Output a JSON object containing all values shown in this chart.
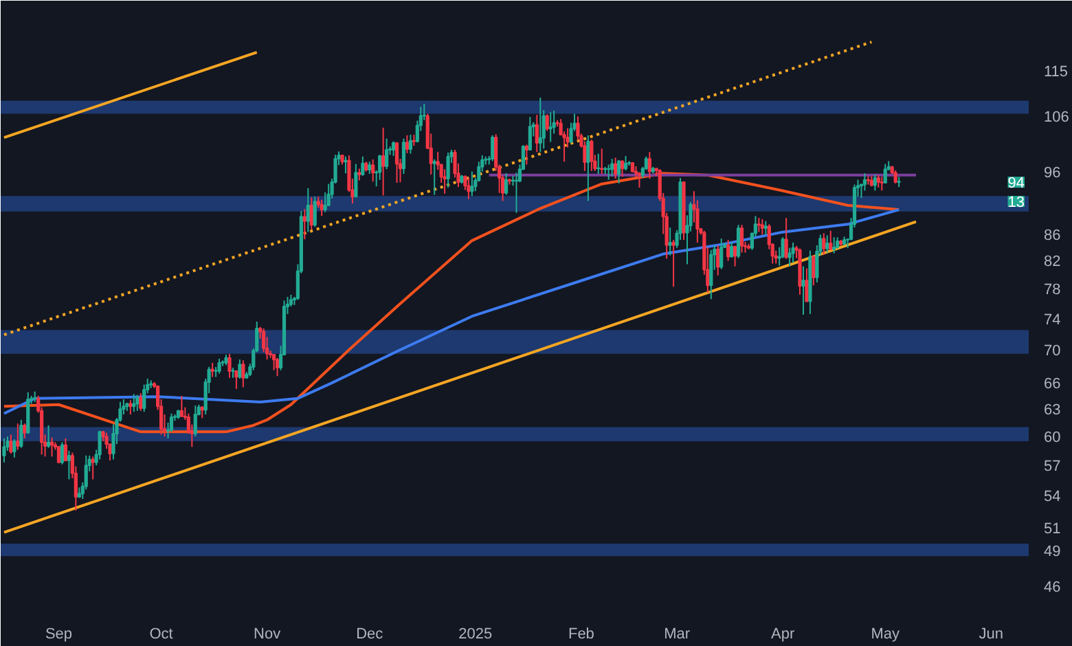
{
  "chart_data": {
    "type": "candlestick",
    "log": "y",
    "grid": false,
    "xlim": [
      "2024-08-15",
      "2025-06-12"
    ],
    "xticks": [
      {
        "value": "2024-09-01",
        "label": "Sep"
      },
      {
        "value": "2024-10-01",
        "label": "Oct"
      },
      {
        "value": "2024-11-01",
        "label": "Nov"
      },
      {
        "value": "2024-12-01",
        "label": "Dec"
      },
      {
        "value": "2025-01-01",
        "label": "2025"
      },
      {
        "value": "2025-02-01",
        "label": "Feb"
      },
      {
        "value": "2025-03-01",
        "label": "Mar"
      },
      {
        "value": "2025-04-01",
        "label": "Apr"
      },
      {
        "value": "2025-05-01",
        "label": "May"
      },
      {
        "value": "2025-06-01",
        "label": "Jun"
      }
    ],
    "ylim": [
      44,
      124
    ],
    "yticks": [
      46,
      49,
      51,
      54,
      57,
      60,
      63,
      66,
      70,
      74,
      78,
      82,
      86,
      96,
      106,
      115
    ],
    "x": [
      "2024-08-16",
      "2024-08-17",
      "2024-08-18",
      "2024-08-19",
      "2024-08-20",
      "2024-08-21",
      "2024-08-22",
      "2024-08-23",
      "2024-08-24",
      "2024-08-25",
      "2024-08-26",
      "2024-08-27",
      "2024-08-28",
      "2024-08-29",
      "2024-08-30",
      "2024-08-31",
      "2024-09-01",
      "2024-09-02",
      "2024-09-03",
      "2024-09-04",
      "2024-09-05",
      "2024-09-06",
      "2024-09-07",
      "2024-09-08",
      "2024-09-09",
      "2024-09-10",
      "2024-09-11",
      "2024-09-12",
      "2024-09-13",
      "2024-09-14",
      "2024-09-15",
      "2024-09-16",
      "2024-09-17",
      "2024-09-18",
      "2024-09-19",
      "2024-09-20",
      "2024-09-21",
      "2024-09-22",
      "2024-09-23",
      "2024-09-24",
      "2024-09-25",
      "2024-09-26",
      "2024-09-27",
      "2024-09-28",
      "2024-09-29",
      "2024-09-30",
      "2024-10-01",
      "2024-10-02",
      "2024-10-03",
      "2024-10-04",
      "2024-10-05",
      "2024-10-06",
      "2024-10-07",
      "2024-10-08",
      "2024-10-09",
      "2024-10-10",
      "2024-10-11",
      "2024-10-12",
      "2024-10-13",
      "2024-10-14",
      "2024-10-15",
      "2024-10-16",
      "2024-10-17",
      "2024-10-18",
      "2024-10-19",
      "2024-10-20",
      "2024-10-21",
      "2024-10-22",
      "2024-10-23",
      "2024-10-24",
      "2024-10-25",
      "2024-10-26",
      "2024-10-27",
      "2024-10-28",
      "2024-10-29",
      "2024-10-30",
      "2024-10-31",
      "2024-11-01",
      "2024-11-02",
      "2024-11-03",
      "2024-11-04",
      "2024-11-05",
      "2024-11-06",
      "2024-11-07",
      "2024-11-08",
      "2024-11-09",
      "2024-11-10",
      "2024-11-11",
      "2024-11-12",
      "2024-11-13",
      "2024-11-14",
      "2024-11-15",
      "2024-11-16",
      "2024-11-17",
      "2024-11-18",
      "2024-11-19",
      "2024-11-20",
      "2024-11-21",
      "2024-11-22",
      "2024-11-23",
      "2024-11-24",
      "2024-11-25",
      "2024-11-26",
      "2024-11-27",
      "2024-11-28",
      "2024-11-29",
      "2024-11-30",
      "2024-12-01",
      "2024-12-02",
      "2024-12-03",
      "2024-12-04",
      "2024-12-05",
      "2024-12-06",
      "2024-12-07",
      "2024-12-08",
      "2024-12-09",
      "2024-12-10",
      "2024-12-11",
      "2024-12-12",
      "2024-12-13",
      "2024-12-14",
      "2024-12-15",
      "2024-12-16",
      "2024-12-17",
      "2024-12-18",
      "2024-12-19",
      "2024-12-20",
      "2024-12-21",
      "2024-12-22",
      "2024-12-23",
      "2024-12-24",
      "2024-12-25",
      "2024-12-26",
      "2024-12-27",
      "2024-12-28",
      "2024-12-29",
      "2024-12-30",
      "2024-12-31",
      "2025-01-01",
      "2025-01-02",
      "2025-01-03",
      "2025-01-04",
      "2025-01-05",
      "2025-01-06",
      "2025-01-07",
      "2025-01-08",
      "2025-01-09",
      "2025-01-10",
      "2025-01-11",
      "2025-01-12",
      "2025-01-13",
      "2025-01-14",
      "2025-01-15",
      "2025-01-16",
      "2025-01-17",
      "2025-01-18",
      "2025-01-19",
      "2025-01-20",
      "2025-01-21",
      "2025-01-22",
      "2025-01-23",
      "2025-01-24",
      "2025-01-25",
      "2025-01-26",
      "2025-01-27",
      "2025-01-28",
      "2025-01-29",
      "2025-01-30",
      "2025-01-31",
      "2025-02-01",
      "2025-02-02",
      "2025-02-03",
      "2025-02-04",
      "2025-02-05",
      "2025-02-06",
      "2025-02-07",
      "2025-02-08",
      "2025-02-09",
      "2025-02-10",
      "2025-02-11",
      "2025-02-12",
      "2025-02-13",
      "2025-02-14",
      "2025-02-15",
      "2025-02-16",
      "2025-02-17",
      "2025-02-18",
      "2025-02-19",
      "2025-02-20",
      "2025-02-21",
      "2025-02-22",
      "2025-02-23",
      "2025-02-24",
      "2025-02-25",
      "2025-02-26",
      "2025-02-27",
      "2025-02-28",
      "2025-03-01",
      "2025-03-02",
      "2025-03-03",
      "2025-03-04",
      "2025-03-05",
      "2025-03-06",
      "2025-03-07",
      "2025-03-08",
      "2025-03-09",
      "2025-03-10",
      "2025-03-11",
      "2025-03-12",
      "2025-03-13",
      "2025-03-14",
      "2025-03-15",
      "2025-03-16",
      "2025-03-17",
      "2025-03-18",
      "2025-03-19",
      "2025-03-20",
      "2025-03-21",
      "2025-03-22",
      "2025-03-23",
      "2025-03-24",
      "2025-03-25",
      "2025-03-26",
      "2025-03-27",
      "2025-03-28",
      "2025-03-29",
      "2025-03-30",
      "2025-03-31",
      "2025-04-01",
      "2025-04-02",
      "2025-04-03",
      "2025-04-04",
      "2025-04-05",
      "2025-04-06",
      "2025-04-07",
      "2025-04-08",
      "2025-04-09",
      "2025-04-10",
      "2025-04-11",
      "2025-04-12",
      "2025-04-13",
      "2025-04-14",
      "2025-04-15",
      "2025-04-16",
      "2025-04-17",
      "2025-04-18",
      "2025-04-19",
      "2025-04-20",
      "2025-04-21",
      "2025-04-22",
      "2025-04-23",
      "2025-04-24",
      "2025-04-25",
      "2025-04-26",
      "2025-04-27",
      "2025-04-28",
      "2025-04-29",
      "2025-04-30",
      "2025-05-01",
      "2025-05-02",
      "2025-05-03",
      "2025-05-04",
      "2025-05-05"
    ],
    "ohlc": [
      [
        58.0,
        59.8,
        57.3,
        58.9
      ],
      [
        58.9,
        60.0,
        58.5,
        59.5
      ],
      [
        59.5,
        60.2,
        58.2,
        58.4
      ],
      [
        58.4,
        59.7,
        57.8,
        59.5
      ],
      [
        59.5,
        61.4,
        58.6,
        59.0
      ],
      [
        59.0,
        61.8,
        58.8,
        61.2
      ],
      [
        61.2,
        61.4,
        59.8,
        60.4
      ],
      [
        60.4,
        64.9,
        60.3,
        64.1
      ],
      [
        64.1,
        64.5,
        63.6,
        64.2
      ],
      [
        64.2,
        65.0,
        63.8,
        64.2
      ],
      [
        64.2,
        64.5,
        62.6,
        62.8
      ],
      [
        62.8,
        63.2,
        58.1,
        59.4
      ],
      [
        59.4,
        60.2,
        57.9,
        59.0
      ],
      [
        59.0,
        61.2,
        58.8,
        59.4
      ],
      [
        59.4,
        59.9,
        57.9,
        59.1
      ],
      [
        59.1,
        59.4,
        58.6,
        58.9
      ],
      [
        58.9,
        59.0,
        57.2,
        57.3
      ],
      [
        57.3,
        59.4,
        57.1,
        59.1
      ],
      [
        59.1,
        59.8,
        57.4,
        57.5
      ],
      [
        57.5,
        58.5,
        55.6,
        58.0
      ],
      [
        58.0,
        58.3,
        55.7,
        56.2
      ],
      [
        56.2,
        56.9,
        52.6,
        53.9
      ],
      [
        53.9,
        54.8,
        53.8,
        54.2
      ],
      [
        54.2,
        55.3,
        53.7,
        54.9
      ],
      [
        54.9,
        58.0,
        54.6,
        57.0
      ],
      [
        57.0,
        58.0,
        56.4,
        57.6
      ],
      [
        57.6,
        57.9,
        55.6,
        57.3
      ],
      [
        57.3,
        58.6,
        57.0,
        58.1
      ],
      [
        58.1,
        60.6,
        57.6,
        60.5
      ],
      [
        60.5,
        60.6,
        59.5,
        60.0
      ],
      [
        60.0,
        60.4,
        58.7,
        59.2
      ],
      [
        59.2,
        59.2,
        57.5,
        58.2
      ],
      [
        58.2,
        61.3,
        57.6,
        60.3
      ],
      [
        60.3,
        62.0,
        59.2,
        61.8
      ],
      [
        61.8,
        63.8,
        61.6,
        63.0
      ],
      [
        63.0,
        64.1,
        62.4,
        63.3
      ],
      [
        63.3,
        63.7,
        62.8,
        63.6
      ],
      [
        63.6,
        64.0,
        62.4,
        63.3
      ],
      [
        63.3,
        64.7,
        62.7,
        63.6
      ],
      [
        63.6,
        64.6,
        62.8,
        64.3
      ],
      [
        64.3,
        64.8,
        62.8,
        63.1
      ],
      [
        63.1,
        65.8,
        62.7,
        65.2
      ],
      [
        65.2,
        66.5,
        64.8,
        65.8
      ],
      [
        65.8,
        66.3,
        65.4,
        65.9
      ],
      [
        65.9,
        66.1,
        65.4,
        65.6
      ],
      [
        65.6,
        65.7,
        62.9,
        63.3
      ],
      [
        63.3,
        64.1,
        60.2,
        60.8
      ],
      [
        60.8,
        62.4,
        60.0,
        60.6
      ],
      [
        60.6,
        61.5,
        59.8,
        60.7
      ],
      [
        60.7,
        62.5,
        60.5,
        62.1
      ],
      [
        62.1,
        62.4,
        61.7,
        62.1
      ],
      [
        62.1,
        62.9,
        61.9,
        62.8
      ],
      [
        62.8,
        64.5,
        62.1,
        62.2
      ],
      [
        62.2,
        63.2,
        61.8,
        62.1
      ],
      [
        62.1,
        62.5,
        60.3,
        60.6
      ],
      [
        60.6,
        61.3,
        58.9,
        60.3
      ],
      [
        60.3,
        63.4,
        60.0,
        62.4
      ],
      [
        62.4,
        63.5,
        62.3,
        63.2
      ],
      [
        63.2,
        63.3,
        62.0,
        62.9
      ],
      [
        62.9,
        66.5,
        62.4,
        66.1
      ],
      [
        66.1,
        67.9,
        64.8,
        67.6
      ],
      [
        67.6,
        68.4,
        66.7,
        67.4
      ],
      [
        67.4,
        67.9,
        66.7,
        67.4
      ],
      [
        67.4,
        68.9,
        67.1,
        68.4
      ],
      [
        68.4,
        68.7,
        68.0,
        68.4
      ],
      [
        68.4,
        69.4,
        68.1,
        69.0
      ],
      [
        69.0,
        69.5,
        66.6,
        67.4
      ],
      [
        67.4,
        67.8,
        66.6,
        67.4
      ],
      [
        67.4,
        67.5,
        65.3,
        66.7
      ],
      [
        66.7,
        68.8,
        66.5,
        68.2
      ],
      [
        68.2,
        68.7,
        65.5,
        66.6
      ],
      [
        66.6,
        67.3,
        66.5,
        67.0
      ],
      [
        67.0,
        68.3,
        66.8,
        67.9
      ],
      [
        67.9,
        70.2,
        67.5,
        69.9
      ],
      [
        69.9,
        73.6,
        69.7,
        72.7
      ],
      [
        72.7,
        72.9,
        71.4,
        72.3
      ],
      [
        72.3,
        72.7,
        69.7,
        70.2
      ],
      [
        70.2,
        71.6,
        68.8,
        69.5
      ],
      [
        69.5,
        69.9,
        69.0,
        69.4
      ],
      [
        69.4,
        69.4,
        67.5,
        68.8
      ],
      [
        68.8,
        69.0,
        66.8,
        67.8
      ],
      [
        67.8,
        70.5,
        67.5,
        69.4
      ],
      [
        69.4,
        76.4,
        69.3,
        75.6
      ],
      [
        75.6,
        76.9,
        74.6,
        75.9
      ],
      [
        75.9,
        77.2,
        75.6,
        76.5
      ],
      [
        76.5,
        76.9,
        75.8,
        76.7
      ],
      [
        76.7,
        81.5,
        76.5,
        80.5
      ],
      [
        80.5,
        89.6,
        80.2,
        88.7
      ],
      [
        88.7,
        89.9,
        85.2,
        88.0
      ],
      [
        88.0,
        93.3,
        86.3,
        90.5
      ],
      [
        90.5,
        91.8,
        86.7,
        87.4
      ],
      [
        87.4,
        91.9,
        87.1,
        91.1
      ],
      [
        91.1,
        91.9,
        90.1,
        90.6
      ],
      [
        90.6,
        91.4,
        88.8,
        89.8
      ],
      [
        89.8,
        92.6,
        89.4,
        90.5
      ],
      [
        90.5,
        94.0,
        90.4,
        92.3
      ],
      [
        92.3,
        94.9,
        91.6,
        94.3
      ],
      [
        94.3,
        99.0,
        94.1,
        98.3
      ],
      [
        98.3,
        99.6,
        97.2,
        98.9
      ],
      [
        98.9,
        99.0,
        97.3,
        97.8
      ],
      [
        97.8,
        98.7,
        95.8,
        98.0
      ],
      [
        98.0,
        98.9,
        92.7,
        93.0
      ],
      [
        93.0,
        94.9,
        90.8,
        91.9
      ],
      [
        91.9,
        97.4,
        91.8,
        95.9
      ],
      [
        95.9,
        96.6,
        94.6,
        95.6
      ],
      [
        95.6,
        98.7,
        95.4,
        97.5
      ],
      [
        97.5,
        97.8,
        96.1,
        96.4
      ],
      [
        96.4,
        97.8,
        95.7,
        97.2
      ],
      [
        97.2,
        98.2,
        94.4,
        95.9
      ],
      [
        95.9,
        96.3,
        93.6,
        96.0
      ],
      [
        96.0,
        99.0,
        94.7,
        98.8
      ],
      [
        98.8,
        103.9,
        92.1,
        97.0
      ],
      [
        97.0,
        101.9,
        96.5,
        99.9
      ],
      [
        99.9,
        100.5,
        99.0,
        99.9
      ],
      [
        99.9,
        101.4,
        98.8,
        101.1
      ],
      [
        101.1,
        101.2,
        94.2,
        97.4
      ],
      [
        97.4,
        98.3,
        94.3,
        96.6
      ],
      [
        96.6,
        101.9,
        95.7,
        101.2
      ],
      [
        101.2,
        102.5,
        99.3,
        100.0
      ],
      [
        100.0,
        102.6,
        99.2,
        101.5
      ],
      [
        101.5,
        102.6,
        100.6,
        101.4
      ],
      [
        101.4,
        105.2,
        101.2,
        104.3
      ],
      [
        104.3,
        107.8,
        103.3,
        106.1
      ],
      [
        106.1,
        108.4,
        105.3,
        106.1
      ],
      [
        106.1,
        106.5,
        100.0,
        100.2
      ],
      [
        100.2,
        102.8,
        95.6,
        97.5
      ],
      [
        97.5,
        98.2,
        92.2,
        97.8
      ],
      [
        97.8,
        99.5,
        96.4,
        97.3
      ],
      [
        97.3,
        97.4,
        94.2,
        95.2
      ],
      [
        95.2,
        96.5,
        92.4,
        94.9
      ],
      [
        94.9,
        99.4,
        93.4,
        98.7
      ],
      [
        98.7,
        99.9,
        97.6,
        99.4
      ],
      [
        99.4,
        99.9,
        95.1,
        95.8
      ],
      [
        95.8,
        97.5,
        93.5,
        94.3
      ],
      [
        94.3,
        95.5,
        94.1,
        95.3
      ],
      [
        95.3,
        95.3,
        93.0,
        93.7
      ],
      [
        93.7,
        95.0,
        91.5,
        92.8
      ],
      [
        92.8,
        96.1,
        92.0,
        93.6
      ],
      [
        93.6,
        95.0,
        92.8,
        94.6
      ],
      [
        94.6,
        97.8,
        94.4,
        96.9
      ],
      [
        96.9,
        98.9,
        96.1,
        98.1
      ],
      [
        98.1,
        98.7,
        97.3,
        98.2
      ],
      [
        98.2,
        98.8,
        97.3,
        98.3
      ],
      [
        98.3,
        102.5,
        97.9,
        102.1
      ],
      [
        102.1,
        102.7,
        96.2,
        96.9
      ],
      [
        96.9,
        97.3,
        92.5,
        95.0
      ],
      [
        95.0,
        95.4,
        91.2,
        92.5
      ],
      [
        92.5,
        95.8,
        92.2,
        94.7
      ],
      [
        94.7,
        94.9,
        93.9,
        94.5
      ],
      [
        94.5,
        95.4,
        93.7,
        94.5
      ],
      [
        94.5,
        95.9,
        89.3,
        94.5
      ],
      [
        94.5,
        97.3,
        94.3,
        96.5
      ],
      [
        96.5,
        100.7,
        96.4,
        100.5
      ],
      [
        100.5,
        100.8,
        97.3,
        99.9
      ],
      [
        99.9,
        105.9,
        99.9,
        104.1
      ],
      [
        104.1,
        104.9,
        102.3,
        104.4
      ],
      [
        104.4,
        106.3,
        99.5,
        101.1
      ],
      [
        101.1,
        109.6,
        99.5,
        102.0
      ],
      [
        102.0,
        107.2,
        100.1,
        106.1
      ],
      [
        106.1,
        106.4,
        103.3,
        103.7
      ],
      [
        103.7,
        106.8,
        101.3,
        104.0
      ],
      [
        104.0,
        107.1,
        102.8,
        104.8
      ],
      [
        104.8,
        105.3,
        104.1,
        104.7
      ],
      [
        104.7,
        105.5,
        102.5,
        102.6
      ],
      [
        102.6,
        103.2,
        97.8,
        102.1
      ],
      [
        102.1,
        103.8,
        100.3,
        101.3
      ],
      [
        101.3,
        104.8,
        101.1,
        103.7
      ],
      [
        103.7,
        106.5,
        103.3,
        104.7
      ],
      [
        104.7,
        106.0,
        101.6,
        102.4
      ],
      [
        102.4,
        102.8,
        100.3,
        100.6
      ],
      [
        100.6,
        101.4,
        96.2,
        97.7
      ],
      [
        97.7,
        102.5,
        91.2,
        101.4
      ],
      [
        101.4,
        101.7,
        96.2,
        97.9
      ],
      [
        97.9,
        99.0,
        96.2,
        96.6
      ],
      [
        96.6,
        99.2,
        95.7,
        96.6
      ],
      [
        96.6,
        100.1,
        95.7,
        96.5
      ],
      [
        96.5,
        96.9,
        95.7,
        96.5
      ],
      [
        96.5,
        97.3,
        94.7,
        96.5
      ],
      [
        96.5,
        98.3,
        95.3,
        97.4
      ],
      [
        97.4,
        98.5,
        94.9,
        95.7
      ],
      [
        95.7,
        98.1,
        94.1,
        97.9
      ],
      [
        97.9,
        98.0,
        95.2,
        96.6
      ],
      [
        96.6,
        98.8,
        96.3,
        97.5
      ],
      [
        97.5,
        97.9,
        97.1,
        97.6
      ],
      [
        97.6,
        97.7,
        96.0,
        96.1
      ],
      [
        96.1,
        97.0,
        95.2,
        95.8
      ],
      [
        95.8,
        96.0,
        93.4,
        95.5
      ],
      [
        95.5,
        96.9,
        95.0,
        96.6
      ],
      [
        96.6,
        98.7,
        96.4,
        98.3
      ],
      [
        98.3,
        99.5,
        94.9,
        96.1
      ],
      [
        96.1,
        96.9,
        95.8,
        96.6
      ],
      [
        96.6,
        96.7,
        95.3,
        96.3
      ],
      [
        96.3,
        96.5,
        91.2,
        91.6
      ],
      [
        91.6,
        92.5,
        86.0,
        88.7
      ],
      [
        88.7,
        89.3,
        82.3,
        84.3
      ],
      [
        84.3,
        87.0,
        82.8,
        84.7
      ],
      [
        84.7,
        85.1,
        78.3,
        84.3
      ],
      [
        84.3,
        86.6,
        83.9,
        86.1
      ],
      [
        86.1,
        95.0,
        85.1,
        94.3
      ],
      [
        94.3,
        94.4,
        85.1,
        86.2
      ],
      [
        86.2,
        88.9,
        81.5,
        87.3
      ],
      [
        87.3,
        91.0,
        86.4,
        90.6
      ],
      [
        90.6,
        92.8,
        87.8,
        89.9
      ],
      [
        89.9,
        91.3,
        84.7,
        86.8
      ],
      [
        86.8,
        86.9,
        85.9,
        86.2
      ],
      [
        86.2,
        86.5,
        80.0,
        80.7
      ],
      [
        80.7,
        84.0,
        77.5,
        78.5
      ],
      [
        78.5,
        83.6,
        76.6,
        82.9
      ],
      [
        82.9,
        84.3,
        80.7,
        83.7
      ],
      [
        83.7,
        84.3,
        79.9,
        81.1
      ],
      [
        81.1,
        85.3,
        80.8,
        84.0
      ],
      [
        84.0,
        84.7,
        83.9,
        84.3
      ],
      [
        84.3,
        85.1,
        82.0,
        82.6
      ],
      [
        82.6,
        84.7,
        82.5,
        84.1
      ],
      [
        84.1,
        84.1,
        81.2,
        82.7
      ],
      [
        82.7,
        87.4,
        82.4,
        86.9
      ],
      [
        86.9,
        87.4,
        83.2,
        84.2
      ],
      [
        84.2,
        84.8,
        83.2,
        84.1
      ],
      [
        84.1,
        84.5,
        83.7,
        83.9
      ],
      [
        83.9,
        86.1,
        83.6,
        86.1
      ],
      [
        86.1,
        88.8,
        85.6,
        87.5
      ],
      [
        87.5,
        88.5,
        86.3,
        87.4
      ],
      [
        87.4,
        88.3,
        85.9,
        86.9
      ],
      [
        86.9,
        88.0,
        85.9,
        87.2
      ],
      [
        87.2,
        87.5,
        83.7,
        84.4
      ],
      [
        84.4,
        84.6,
        81.6,
        82.7
      ],
      [
        82.7,
        83.5,
        81.6,
        82.4
      ],
      [
        82.4,
        84.0,
        81.3,
        82.6
      ],
      [
        82.6,
        85.5,
        82.4,
        85.2
      ],
      [
        85.2,
        88.5,
        82.3,
        82.5
      ],
      [
        82.5,
        83.9,
        81.2,
        83.1
      ],
      [
        83.1,
        84.7,
        81.7,
        83.9
      ],
      [
        83.9,
        84.2,
        82.4,
        83.6
      ],
      [
        83.6,
        83.8,
        77.2,
        78.4
      ],
      [
        78.4,
        81.2,
        74.5,
        79.2
      ],
      [
        79.2,
        80.9,
        76.2,
        76.3
      ],
      [
        76.3,
        83.5,
        74.6,
        82.6
      ],
      [
        82.6,
        82.7,
        78.5,
        79.6
      ],
      [
        79.6,
        84.3,
        78.9,
        83.4
      ],
      [
        83.4,
        85.9,
        82.8,
        85.3
      ],
      [
        85.3,
        86.1,
        82.9,
        83.8
      ],
      [
        83.8,
        85.8,
        83.2,
        84.6
      ],
      [
        84.6,
        86.5,
        83.6,
        83.7
      ],
      [
        83.7,
        85.5,
        83.1,
        84.0
      ],
      [
        84.0,
        85.5,
        83.8,
        84.9
      ],
      [
        84.9,
        85.1,
        84.2,
        84.5
      ],
      [
        84.5,
        85.6,
        84.3,
        85.1
      ],
      [
        85.1,
        85.3,
        83.9,
        85.2
      ],
      [
        85.2,
        88.5,
        85.1,
        87.5
      ],
      [
        87.5,
        93.9,
        87.0,
        93.4
      ],
      [
        93.4,
        94.7,
        91.9,
        93.7
      ],
      [
        93.7,
        94.0,
        91.7,
        93.9
      ],
      [
        93.9,
        95.8,
        92.9,
        94.7
      ],
      [
        94.7,
        95.3,
        93.9,
        94.6
      ],
      [
        94.6,
        95.3,
        93.6,
        93.8
      ],
      [
        93.8,
        95.6,
        92.9,
        95.0
      ],
      [
        95.0,
        95.5,
        93.4,
        94.3
      ],
      [
        94.3,
        95.2,
        92.9,
        94.2
      ],
      [
        94.2,
        97.4,
        94.1,
        96.5
      ],
      [
        96.5,
        97.9,
        96.3,
        96.9
      ],
      [
        96.9,
        96.9,
        95.7,
        95.9
      ],
      [
        95.9,
        96.3,
        94.1,
        94.3
      ],
      [
        94.3,
        95.2,
        93.5,
        94.3
      ]
    ],
    "series": [
      {
        "type": "line",
        "color": "#f4511e",
        "x": [
          "2024-08-16",
          "2024-09-01",
          "2024-09-25",
          "2024-10-20",
          "2024-10-28",
          "2024-11-01",
          "2024-11-08",
          "2024-11-25",
          "2024-12-10",
          "2024-12-31",
          "2025-01-20",
          "2025-02-07",
          "2025-02-25",
          "2025-03-10",
          "2025-03-31",
          "2025-04-20",
          "2025-05-05"
        ],
        "values": [
          63.3,
          63.5,
          60.5,
          60.5,
          61.2,
          61.8,
          63.5,
          70,
          76,
          85,
          90,
          94,
          95.8,
          95.5,
          93,
          90.5,
          89.8
        ]
      },
      {
        "type": "line",
        "color": "#3d7bf0",
        "x": [
          "2024-08-16",
          "2024-08-25",
          "2024-09-30",
          "2024-10-30",
          "2024-11-10",
          "2024-11-20",
          "2024-12-10",
          "2024-12-31",
          "2025-01-31",
          "2025-02-25",
          "2025-03-15",
          "2025-04-01",
          "2025-04-20",
          "2025-05-05"
        ],
        "values": [
          62.5,
          64.2,
          64.4,
          63.8,
          64.2,
          66,
          70,
          74.3,
          79,
          83,
          84.5,
          86.3,
          87.5,
          89.8
        ]
      },
      {
        "type": "line",
        "color": "#f5a623",
        "x": [
          "2024-08-16",
          "2025-05-10"
        ],
        "values": [
          50.6,
          87.9
        ]
      },
      {
        "type": "line",
        "color": "#f5a623",
        "x": [
          "2024-08-16",
          "2024-10-29"
        ],
        "values": [
          102.1,
          118.8
        ]
      },
      {
        "type": "line",
        "color": "#f5a623",
        "line_style": "dotted",
        "x": [
          "2024-08-16",
          "2025-04-27"
        ],
        "values": [
          71.9,
          121
        ]
      },
      {
        "type": "line",
        "color": "#7b3f9e",
        "x": [
          "2025-01-05",
          "2025-05-10"
        ],
        "values": [
          95.5,
          95.5
        ]
      }
    ],
    "bands": [
      {
        "axis": "y",
        "from": 106.5,
        "to": 109,
        "color": "#1f3d78"
      },
      {
        "axis": "y",
        "from": 89.5,
        "to": 92,
        "color": "#1f3d78"
      },
      {
        "axis": "y",
        "from": 69.5,
        "to": 72.5,
        "color": "#1f3d78"
      },
      {
        "axis": "y",
        "from": 59.5,
        "to": 61,
        "color": "#1f3d78"
      },
      {
        "axis": "y",
        "from": 48.5,
        "to": 49.6,
        "color": "#1f3d78"
      }
    ],
    "annotations": [
      {
        "text": "94",
        "y": 94.3
      },
      "13"
    ]
  }
}
